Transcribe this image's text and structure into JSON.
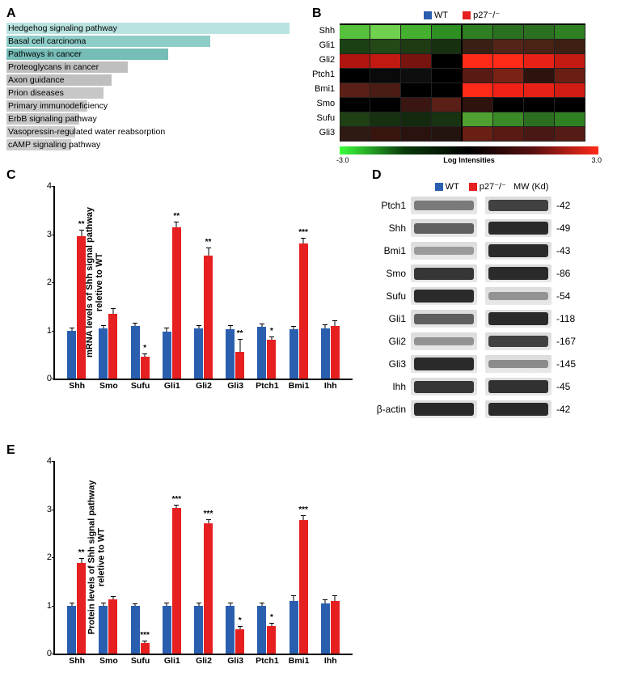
{
  "colors": {
    "wt": "#2a5fb0",
    "ko": "#e62020",
    "black": "#000000"
  },
  "legend": {
    "wt": "WT",
    "ko": "p27⁻/⁻",
    "mw": "MW (Kd)"
  },
  "panelA": {
    "label": "A",
    "rows": [
      {
        "text": "Hedgehog signaling pathway",
        "len": 350,
        "color": "#b9e3e0"
      },
      {
        "text": "Basal cell carcinoma",
        "len": 252,
        "color": "#8fcdc9"
      },
      {
        "text": "Pathways in cancer",
        "len": 200,
        "color": "#76bdb8"
      },
      {
        "text": "Proteoglycans in cancer",
        "len": 150,
        "color": "#bfbfbf"
      },
      {
        "text": "Axon guidance",
        "len": 130,
        "color": "#bfbfbf"
      },
      {
        "text": "Prion diseases",
        "len": 120,
        "color": "#c7c7c7"
      },
      {
        "text": "Primary immunodeficiency",
        "len": 100,
        "color": "#c7c7c7"
      },
      {
        "text": "ErbB signaling pathway",
        "len": 90,
        "color": "#c7c7c7"
      },
      {
        "text": "Vasopressin-regulated water reabsorption",
        "len": 85,
        "color": "#cccccc"
      },
      {
        "text": "cAMP signaling pathway",
        "len": 80,
        "color": "#cccccc"
      }
    ]
  },
  "panelB": {
    "label": "B",
    "rowLabels": [
      "Shh",
      "Gli1",
      "Gli2",
      "Ptch1",
      "Bmi1",
      "Smo",
      "Sufu",
      "Gli3"
    ],
    "cells": [
      [
        "#55c13c",
        "#6fd14e",
        "#45b030",
        "#2e8f23",
        "#2e7f22",
        "#2a7020",
        "#2a7020",
        "#2f7f23"
      ],
      [
        "#1a4013",
        "#244816",
        "#1e3b13",
        "#163010",
        "#3a2014",
        "#552418",
        "#4b2216",
        "#3e1f14"
      ],
      [
        "#b01510",
        "#c21a12",
        "#781410",
        "#000000",
        "#ff2a18",
        "#ff2a18",
        "#e82015",
        "#c41a12"
      ],
      [
        "#000000",
        "#0a0a0a",
        "#0e0e0e",
        "#000000",
        "#5a1a14",
        "#7a2216",
        "#2e120e",
        "#6a1f15"
      ],
      [
        "#5a1f16",
        "#4a1c14",
        "#000000",
        "#000000",
        "#ff2a18",
        "#f02218",
        "#e82015",
        "#d01c13"
      ],
      [
        "#000000",
        "#000000",
        "#3a1612",
        "#5a1f16",
        "#2e120e",
        "#000000",
        "#000000",
        "#000000"
      ],
      [
        "#1e4014",
        "#173010",
        "#132a0e",
        "#183312",
        "#4fa030",
        "#3a8a28",
        "#2a6f20",
        "#2f7f23"
      ],
      [
        "#2e1a12",
        "#38140f",
        "#2a120e",
        "#241410",
        "#6a1f15",
        "#5a1a14",
        "#4a1814",
        "#551c15"
      ]
    ],
    "scale": {
      "min": "-3.0",
      "mid": "Log Intensities",
      "max": "3.0"
    }
  },
  "panelC": {
    "label": "C",
    "ylabel": "mRNA levels of Shh signal pathway\nreletive to WT",
    "ymax": 4,
    "yticks": [
      0,
      1,
      2,
      3,
      4
    ],
    "genes": [
      "Shh",
      "Smo",
      "Sufu",
      "Gli1",
      "Gli2",
      "Gli3",
      "Ptch1",
      "Bmi1",
      "Ihh"
    ],
    "wt": [
      1.0,
      1.05,
      1.1,
      0.98,
      1.05,
      1.02,
      1.08,
      1.02,
      1.05
    ],
    "wterr": [
      0.05,
      0.05,
      0.04,
      0.06,
      0.05,
      0.08,
      0.05,
      0.05,
      0.06
    ],
    "ko": [
      2.95,
      1.35,
      0.45,
      3.15,
      2.55,
      0.55,
      0.8,
      2.8,
      1.1
    ],
    "koerr": [
      0.12,
      0.1,
      0.06,
      0.1,
      0.15,
      0.25,
      0.06,
      0.1,
      0.1
    ],
    "sig": [
      "**",
      "",
      "*",
      "**",
      "**",
      "**",
      "*",
      "***",
      ""
    ]
  },
  "panelD": {
    "label": "D",
    "rows": [
      {
        "name": "Ptch1",
        "mw": "-42",
        "wt": 0.55,
        "ko": 0.85
      },
      {
        "name": "Shh",
        "mw": "-49",
        "wt": 0.7,
        "ko": 0.95
      },
      {
        "name": "Bmi1",
        "mw": "-43",
        "wt": 0.35,
        "ko": 0.95
      },
      {
        "name": "Smo",
        "mw": "-86",
        "wt": 0.9,
        "ko": 0.95
      },
      {
        "name": "Sufu",
        "mw": "-54",
        "wt": 0.95,
        "ko": 0.4
      },
      {
        "name": "Gli1",
        "mw": "-118",
        "wt": 0.7,
        "ko": 0.95
      },
      {
        "name": "Gli2",
        "mw": "-167",
        "wt": 0.4,
        "ko": 0.85
      },
      {
        "name": "Gli3",
        "mw": "-145",
        "wt": 0.95,
        "ko": 0.45
      },
      {
        "name": "Ihh",
        "mw": "-45",
        "wt": 0.9,
        "ko": 0.92
      },
      {
        "name": "β-actin",
        "mw": "-42",
        "wt": 0.95,
        "ko": 0.95
      }
    ]
  },
  "panelE": {
    "label": "E",
    "ylabel": "Protein levels of Shh signal pathway\nreletive to WT",
    "ymax": 4,
    "yticks": [
      0,
      1,
      2,
      3,
      4
    ],
    "genes": [
      "Shh",
      "Smo",
      "Sufu",
      "Gli1",
      "Gli2",
      "Gli3",
      "Ptch1",
      "Bmi1",
      "Ihh"
    ],
    "wt": [
      1.0,
      1.0,
      1.0,
      1.0,
      1.0,
      1.0,
      1.0,
      1.1,
      1.05
    ],
    "wterr": [
      0.05,
      0.04,
      0.03,
      0.05,
      0.04,
      0.04,
      0.05,
      0.1,
      0.06
    ],
    "ko": [
      1.88,
      1.12,
      0.22,
      3.02,
      2.7,
      0.5,
      0.58,
      2.78,
      1.1
    ],
    "koerr": [
      0.08,
      0.05,
      0.04,
      0.06,
      0.08,
      0.05,
      0.05,
      0.08,
      0.1
    ],
    "sig": [
      "**",
      "",
      "***",
      "***",
      "***",
      "*",
      "*",
      "***",
      ""
    ]
  }
}
